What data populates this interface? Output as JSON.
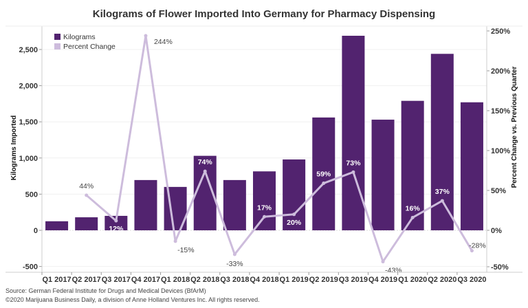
{
  "chart_data": {
    "type": "bar+line",
    "title": "Kilograms of Flower Imported Into Germany for Pharmacy Dispensing",
    "categories": [
      "Q1 2017",
      "Q2 2017",
      "Q3 2017",
      "Q4 2017",
      "Q1 2018",
      "Q2 2018",
      "Q3 2018",
      "Q4 2018",
      "Q1 2019",
      "Q2 2019",
      "Q3 2019",
      "Q4 2019",
      "Q1 2020",
      "Q2 2020",
      "Q3 2020"
    ],
    "series": [
      {
        "name": "Kilograms",
        "type": "bar",
        "axis": "left",
        "color": "#52236f",
        "values": [
          125,
          180,
          200,
          695,
          600,
          1030,
          695,
          815,
          980,
          1560,
          2690,
          1530,
          1790,
          2440,
          1770
        ]
      },
      {
        "name": "Percent Change",
        "type": "line",
        "axis": "right",
        "color": "#cdbcdc",
        "values": [
          null,
          44,
          12,
          244,
          -15,
          74,
          -33,
          17,
          20,
          59,
          73,
          -43,
          16,
          37,
          -28
        ],
        "labels": [
          "",
          "44%",
          "12%",
          "244%",
          "-15%",
          "74%",
          "-33%",
          "17%",
          "20%",
          "59%",
          "73%",
          "-43%",
          "16%",
          "37%",
          "-28%"
        ]
      }
    ],
    "ylabel_left": "Kilograms Imported",
    "ylabel_right": "Percent Change vs. Previous Quarter",
    "ylim_left": [
      -500,
      2750
    ],
    "yticks_left": [
      "-500",
      "0",
      "500",
      "1,000",
      "1,500",
      "2,000",
      "2,500"
    ],
    "ytick_values_left": [
      -500,
      0,
      500,
      1000,
      1500,
      2000,
      2500
    ],
    "ylim_right": [
      -50,
      250
    ],
    "yticks_right": [
      "-50%",
      "0%",
      "50%",
      "100%",
      "150%",
      "200%",
      "250%"
    ],
    "ytick_values_right": [
      -50,
      0,
      50,
      100,
      150,
      200,
      250
    ],
    "grid": true,
    "legend": "top-left"
  },
  "footer": {
    "source": "Source: German Federal Institute for Drugs and Medical Devices (BfArM)",
    "copyright": "©2020 Marijuana Business Daily, a division of Anne Holland Ventures Inc. All rights reserved."
  }
}
